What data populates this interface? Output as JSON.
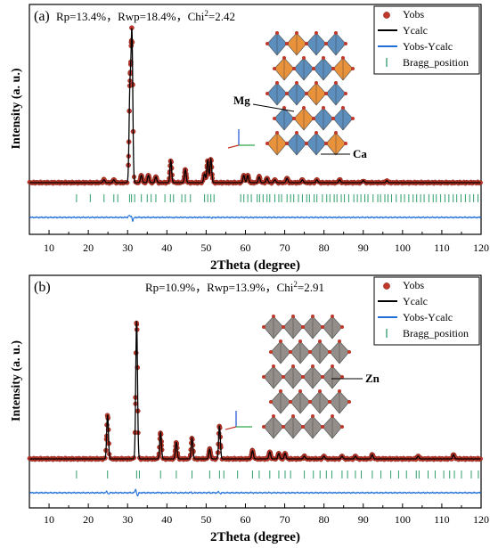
{
  "colors": {
    "obs_fill": "#c0392b",
    "obs_edge": "#7a1a12",
    "calc": "#000000",
    "diff": "#1f6fd6",
    "bragg": "#2e9e6b",
    "polyhedra_blue": "#4f86b8",
    "polyhedra_orange": "#e8892c",
    "polyhedra_grey": "#8a8580",
    "oxygen": "#c0392b"
  },
  "chart_data": [
    {
      "type": "line",
      "panel_label": "(a)",
      "stats": {
        "rp_label": "Rp=13.4%",
        "rwp_label": "Rwp=18.4%",
        "chi_label": "Chi",
        "chi_sup": "2",
        "chi_value": "=2.42",
        "separator": "，"
      },
      "xlabel": "2Theta (degree)",
      "ylabel": "Intensity (a. u.)",
      "xlim": [
        5,
        120
      ],
      "xticks": [
        10,
        20,
        30,
        40,
        50,
        60,
        70,
        80,
        90,
        100,
        110,
        120
      ],
      "legend": [
        "Yobs",
        "Ycalc",
        "Yobs-Ycalc",
        "Bragg_position"
      ],
      "legend_position": "top-right",
      "crystal_labels": [
        "Mg",
        "Ca"
      ],
      "peaks": [
        {
          "x": 24.0,
          "h": 0.02
        },
        {
          "x": 26.5,
          "h": 0.02
        },
        {
          "x": 30.6,
          "h": 0.62
        },
        {
          "x": 31.1,
          "h": 1.0
        },
        {
          "x": 33.5,
          "h": 0.05
        },
        {
          "x": 35.3,
          "h": 0.05
        },
        {
          "x": 37.2,
          "h": 0.04
        },
        {
          "x": 41.0,
          "h": 0.15
        },
        {
          "x": 44.7,
          "h": 0.09
        },
        {
          "x": 49.6,
          "h": 0.06
        },
        {
          "x": 50.4,
          "h": 0.15
        },
        {
          "x": 51.2,
          "h": 0.16
        },
        {
          "x": 59.6,
          "h": 0.05
        },
        {
          "x": 60.6,
          "h": 0.05
        },
        {
          "x": 63.5,
          "h": 0.04
        },
        {
          "x": 65.5,
          "h": 0.03
        },
        {
          "x": 67.5,
          "h": 0.02
        },
        {
          "x": 70.6,
          "h": 0.03
        },
        {
          "x": 74.5,
          "h": 0.02
        },
        {
          "x": 78.2,
          "h": 0.02
        },
        {
          "x": 84.0,
          "h": 0.02
        },
        {
          "x": 90.0,
          "h": 0.015
        },
        {
          "x": 96.0,
          "h": 0.015
        }
      ],
      "bragg_positions": [
        17,
        20.5,
        24,
        26.5,
        27.5,
        30.5,
        31,
        31.8,
        33.5,
        35,
        36,
        37.2,
        39.5,
        40.9,
        41.7,
        43.8,
        44.7,
        46,
        49.6,
        50.4,
        51.2,
        52,
        58.8,
        59.6,
        60.6,
        61.5,
        63,
        63.6,
        64.5,
        65.5,
        66.2,
        67.5,
        68.5,
        69.2,
        70.6,
        71.5,
        72.3,
        73.5,
        74.5,
        75.6,
        76.3,
        77.5,
        78.2,
        79.6,
        80.7,
        81.5,
        82.6,
        83.3,
        84.4,
        85.2,
        86.3,
        87.6,
        88.5,
        89.4,
        90.4,
        91.2,
        92.5,
        93.7,
        94.4,
        95.5,
        96.3,
        97.2,
        98.4,
        99.6,
        100.5,
        101.6,
        102.7,
        103.6,
        104.6,
        105.5,
        106.7,
        107.8,
        108.6,
        109.7,
        110.8,
        111.8,
        112.9,
        113.8,
        114.9,
        116.0,
        117.1,
        118.1,
        119.2
      ]
    },
    {
      "type": "line",
      "panel_label": "(b)",
      "stats": {
        "rp_label": "Rp=10.9%",
        "rwp_label": "Rwp=13.9%",
        "chi_label": "Chi",
        "chi_sup": "2",
        "chi_value": "=2.91",
        "separator": "，"
      },
      "xlabel": "2Theta (degree)",
      "ylabel": "Intensity (a. u.)",
      "xlim": [
        5,
        120
      ],
      "xticks": [
        10,
        20,
        30,
        40,
        50,
        60,
        70,
        80,
        90,
        100,
        110,
        120
      ],
      "legend": [
        "Yobs",
        "Ycalc",
        "Yobs-Ycalc",
        "Bragg_position"
      ],
      "legend_position": "top-right",
      "crystal_labels": [
        "Zn"
      ],
      "peaks": [
        {
          "x": 24.9,
          "h": 0.32
        },
        {
          "x": 32.3,
          "h": 1.0
        },
        {
          "x": 38.4,
          "h": 0.19
        },
        {
          "x": 42.4,
          "h": 0.12
        },
        {
          "x": 46.4,
          "h": 0.15
        },
        {
          "x": 50.9,
          "h": 0.07
        },
        {
          "x": 53.4,
          "h": 0.24
        },
        {
          "x": 61.8,
          "h": 0.06
        },
        {
          "x": 66.2,
          "h": 0.05
        },
        {
          "x": 68.5,
          "h": 0.04
        },
        {
          "x": 70.1,
          "h": 0.04
        },
        {
          "x": 75.0,
          "h": 0.02
        },
        {
          "x": 80.0,
          "h": 0.02
        },
        {
          "x": 84.6,
          "h": 0.02
        },
        {
          "x": 88.0,
          "h": 0.02
        },
        {
          "x": 92.3,
          "h": 0.03
        },
        {
          "x": 104.0,
          "h": 0.02
        },
        {
          "x": 113.0,
          "h": 0.03
        }
      ],
      "bragg_positions": [
        17,
        24.9,
        32.3,
        33,
        38.4,
        42.4,
        46.4,
        50.9,
        53.4,
        54.5,
        58,
        61.8,
        63.5,
        66.2,
        68.5,
        70.1,
        71.5,
        75,
        77.3,
        79,
        80.6,
        82,
        84.6,
        86,
        88,
        89.5,
        92.3,
        94.5,
        97,
        99,
        101,
        103.5,
        104.2,
        106.5,
        108.3,
        110.5,
        112,
        113.2,
        115,
        117.5,
        119.3
      ]
    }
  ]
}
